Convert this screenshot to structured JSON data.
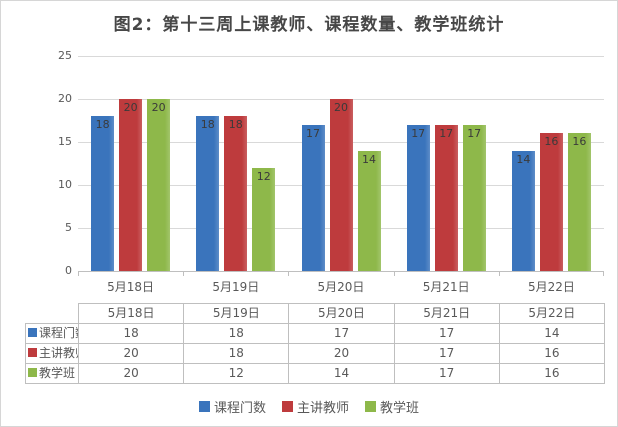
{
  "title": "图2：第十三周上课教师、课程数量、教学班统计",
  "chart_data": {
    "type": "bar",
    "title": "图2：第十三周上课教师、课程数量、教学班统计",
    "categories": [
      "5月18日",
      "5月19日",
      "5月20日",
      "5月21日",
      "5月22日"
    ],
    "series": [
      {
        "name": "课程门数",
        "color": "#3a74bc",
        "values": [
          18,
          18,
          17,
          17,
          14
        ]
      },
      {
        "name": "主讲教师",
        "color": "#be3b3d",
        "values": [
          20,
          18,
          20,
          17,
          16
        ]
      },
      {
        "name": "教学班",
        "color": "#8eb84a",
        "values": [
          20,
          12,
          14,
          17,
          16
        ]
      }
    ],
    "ylim": [
      0,
      25
    ],
    "yticks": [
      0,
      5,
      10,
      15,
      20,
      25
    ],
    "grid": "horizontal",
    "legend_position": "bottom",
    "data_labels": "inside-end",
    "data_table_shown": true,
    "colors": {
      "gridline": "#d9d9d9",
      "axis_line": "#bfbfbf",
      "table_border": "#bfbfbf",
      "text": "#595959",
      "title_text": "#474747",
      "data_label_text": "#3a3a3a"
    }
  }
}
